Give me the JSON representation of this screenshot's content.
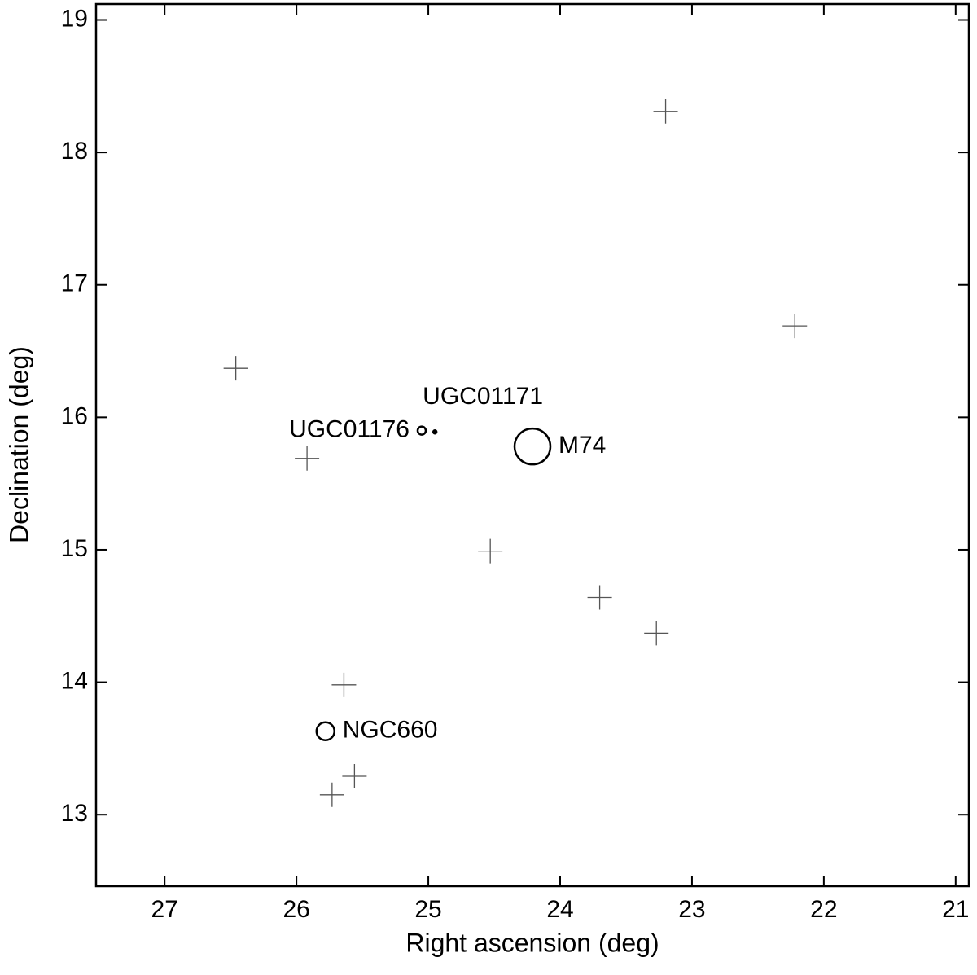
{
  "chart_data": {
    "type": "scatter",
    "x_label": "Right ascension (deg)",
    "y_label": "Declination (deg)",
    "xlim": [
      27.52,
      20.9
    ],
    "ylim": [
      12.46,
      19.12
    ],
    "xticks": [
      27,
      26,
      25,
      24,
      23,
      22,
      21
    ],
    "yticks": [
      13,
      14,
      15,
      16,
      17,
      18,
      19
    ],
    "series": [
      {
        "marker": "cross",
        "color": "#555555",
        "x": [
          26.46,
          23.2,
          22.22,
          25.92,
          24.53,
          23.7,
          23.27,
          25.64,
          25.56,
          25.73
        ],
        "y": [
          16.37,
          18.31,
          16.69,
          15.69,
          14.99,
          14.64,
          14.37,
          13.98,
          13.29,
          13.15
        ]
      },
      {
        "marker": "circle",
        "color": "#000000",
        "x": [
          24.21,
          25.05,
          24.95,
          25.78
        ],
        "y": [
          15.78,
          15.9,
          15.89,
          13.63
        ],
        "sizes": [
          22,
          5,
          2,
          11
        ],
        "labels": [
          "M74",
          "UGC01176",
          "UGC01171",
          "NGC660"
        ],
        "label_position": [
          "right",
          "left",
          "above",
          "right"
        ]
      }
    ]
  }
}
